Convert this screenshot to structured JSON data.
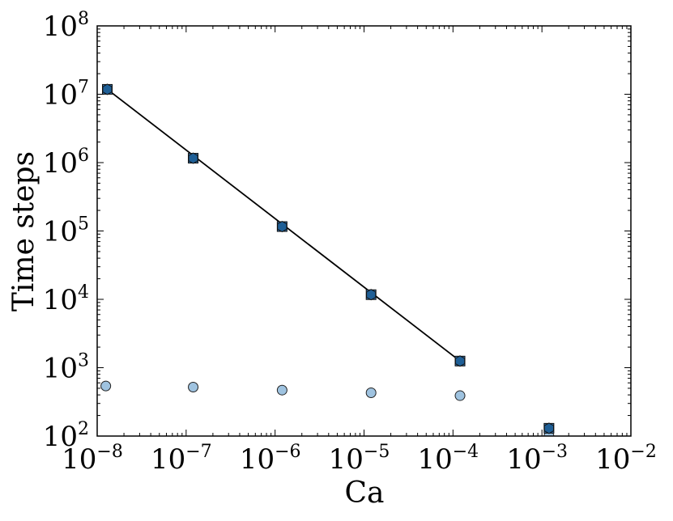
{
  "chart_data": {
    "type": "scatter",
    "title": "",
    "xlabel": "Ca",
    "ylabel": "Time steps",
    "xscale": "log",
    "yscale": "log",
    "xlim": [
      1e-08,
      0.01
    ],
    "ylim": [
      100,
      100000000
    ],
    "x_ticks": [
      {
        "value": 1e-08,
        "base": "10",
        "exp": "−8"
      },
      {
        "value": 1e-07,
        "base": "10",
        "exp": "−7"
      },
      {
        "value": 1e-06,
        "base": "10",
        "exp": "−6"
      },
      {
        "value": 1e-05,
        "base": "10",
        "exp": "−5"
      },
      {
        "value": 0.0001,
        "base": "10",
        "exp": "−4"
      },
      {
        "value": 0.001,
        "base": "10",
        "exp": "−3"
      },
      {
        "value": 0.01,
        "base": "10",
        "exp": "−2"
      }
    ],
    "y_ticks": [
      {
        "value": 100,
        "base": "10",
        "exp": "2"
      },
      {
        "value": 1000,
        "base": "10",
        "exp": "3"
      },
      {
        "value": 10000,
        "base": "10",
        "exp": "4"
      },
      {
        "value": 100000,
        "base": "10",
        "exp": "5"
      },
      {
        "value": 1000000,
        "base": "10",
        "exp": "6"
      },
      {
        "value": 10000000,
        "base": "10",
        "exp": "7"
      },
      {
        "value": 100000000,
        "base": "10",
        "exp": "8"
      }
    ],
    "grid": false,
    "series": [
      {
        "marker": "circle",
        "color": "#9fc3e0",
        "x": [
          1.25e-08,
          1.2e-07,
          1.2e-06,
          1.2e-05,
          0.00012,
          0.0012
        ],
        "y": [
          540,
          520,
          470,
          430,
          390,
          100
        ]
      },
      {
        "marker": "square",
        "color": "#3173b0",
        "x": [
          1.3e-08,
          1.2e-07,
          1.2e-06,
          1.2e-05,
          0.00012,
          0.0012
        ],
        "y": [
          11800000,
          1160000,
          116000,
          11700,
          1250,
          130
        ]
      },
      {
        "marker": "hexagon",
        "color": "#1f5f96",
        "x": [
          1.3e-08,
          1.2e-07,
          1.2e-06,
          1.2e-05,
          0.00012,
          0.0012
        ],
        "y": [
          11800000,
          1160000,
          116000,
          11700,
          1250,
          130
        ]
      },
      {
        "marker": "line",
        "color": "#000000",
        "x": [
          1.3e-08,
          0.00012
        ],
        "y": [
          11800000,
          1250
        ]
      }
    ]
  }
}
